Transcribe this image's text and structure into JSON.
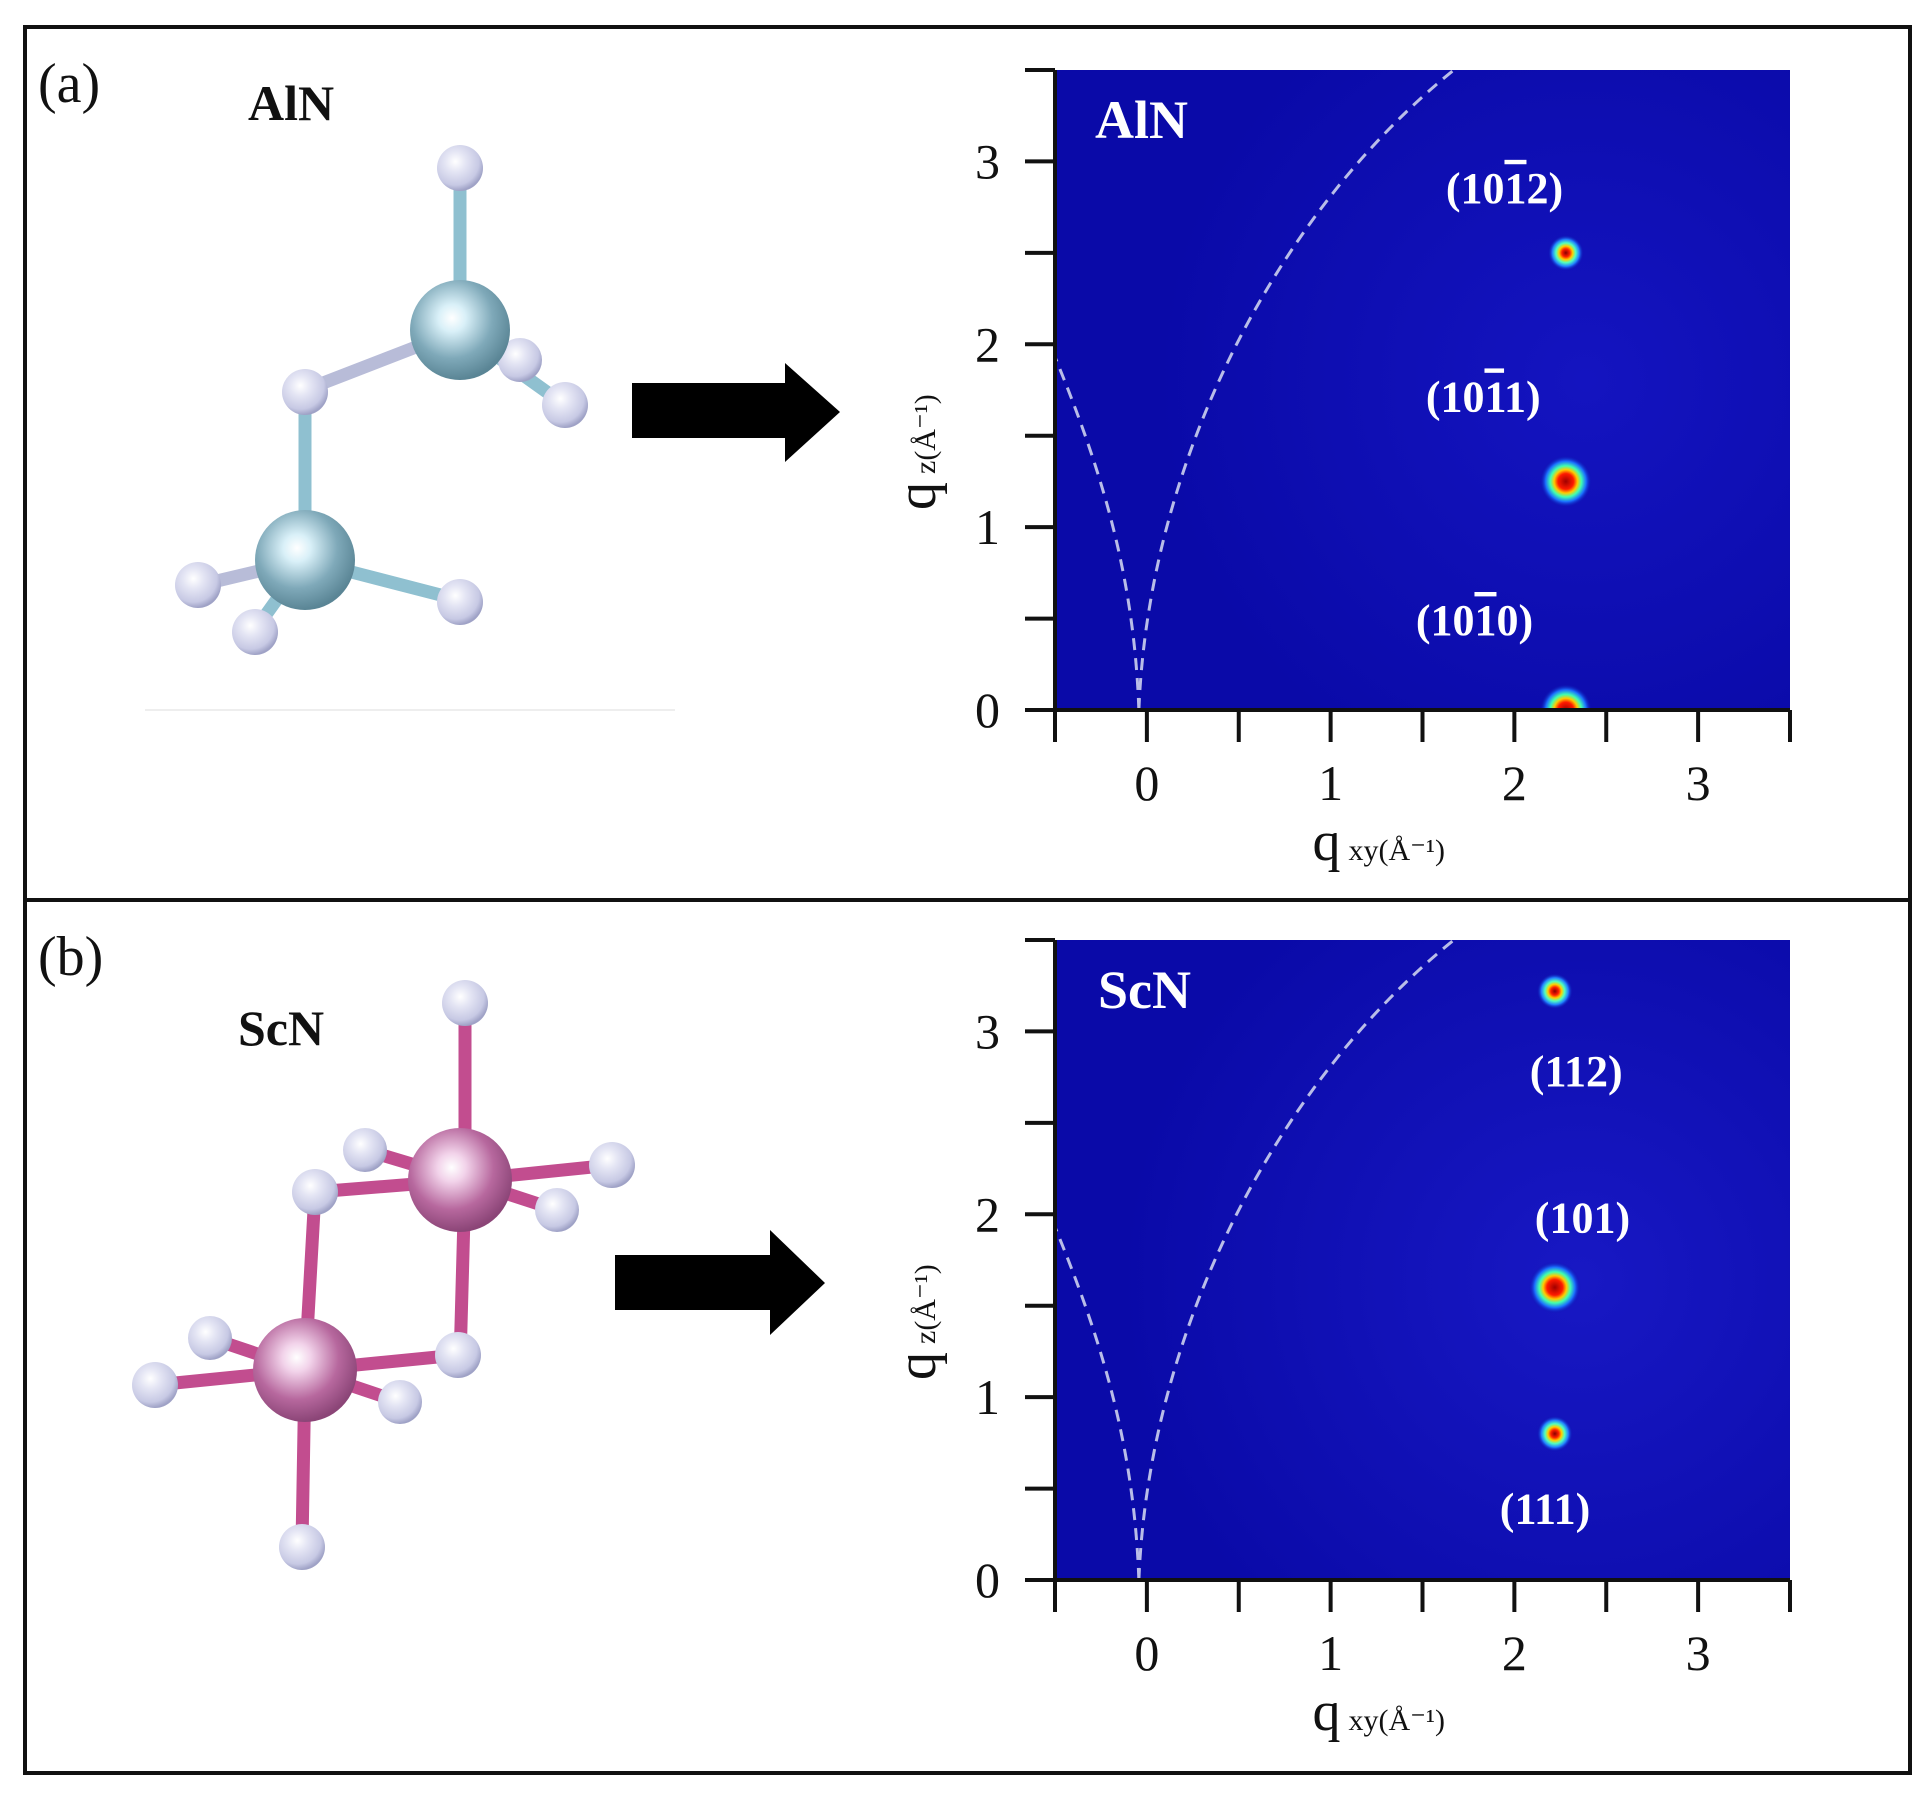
{
  "panels": [
    {
      "id": "a",
      "panel_label": "(a)",
      "material": "AlN",
      "atom_color": "#7fa9b9",
      "bond_color": "#8fc0d0",
      "plot_title": "AlN",
      "peaks": [
        {
          "label_pre": "(10",
          "label_bar": "1",
          "label_post": "2)",
          "label_suffix": ""
        },
        {
          "label_pre": "(10",
          "label_bar": "1",
          "label_post": "1)",
          "label_suffix": ""
        },
        {
          "label_pre": "(10",
          "label_bar": "1",
          "label_post": "0)",
          "label_suffix": ""
        }
      ]
    },
    {
      "id": "b",
      "panel_label": "(b)",
      "material": "ScN",
      "atom_color": "#b7689e",
      "bond_color": "#c24d8f",
      "plot_title": "ScN",
      "peaks": [
        {
          "label_pre": "(112)",
          "label_bar": "",
          "label_post": "",
          "label_suffix": ""
        },
        {
          "label_pre": "(101)",
          "label_bar": "",
          "label_post": "",
          "label_suffix": ""
        },
        {
          "label_pre": "(111)",
          "label_bar": "",
          "label_post": "",
          "label_suffix": ""
        }
      ]
    }
  ],
  "nitrogen_color": "#c7c9e4",
  "colormap_background": "#0a0aa8",
  "axes": {
    "x_label_main": "q",
    "x_label_sub": "xy(Å⁻¹)",
    "y_label_main": "q",
    "y_label_sub": "z(Å⁻¹)"
  },
  "chart_data": [
    {
      "type": "heatmap",
      "title": "AlN",
      "xlabel": "q xy(Å⁻¹)",
      "ylabel": "q z(Å⁻¹)",
      "xlim": [
        -0.5,
        3.5
      ],
      "ylim": [
        0,
        3.5
      ],
      "xticks": [
        0,
        1,
        2,
        3
      ],
      "yticks": [
        0,
        1,
        2,
        3
      ],
      "xtick_labels": [
        "0",
        "1",
        "2",
        "3"
      ],
      "ytick_labels": [
        "0",
        "1",
        "2",
        "3"
      ],
      "peaks": [
        {
          "label": "(10-12)",
          "qxy": 2.28,
          "qz": 2.5,
          "intensity": "medium"
        },
        {
          "label": "(10-11)",
          "qxy": 2.28,
          "qz": 1.25,
          "intensity": "strong"
        },
        {
          "label": "(10-10)",
          "qxy": 2.28,
          "qz": 0.0,
          "intensity": "strong"
        }
      ],
      "wedge_boundaries": "dashed"
    },
    {
      "type": "heatmap",
      "title": "ScN",
      "xlabel": "q xy(Å⁻¹)",
      "ylabel": "q z(Å⁻¹)",
      "xlim": [
        -0.5,
        3.5
      ],
      "ylim": [
        0,
        3.5
      ],
      "xticks": [
        0,
        1,
        2,
        3
      ],
      "yticks": [
        0,
        1,
        2,
        3
      ],
      "xtick_labels": [
        "0",
        "1",
        "2",
        "3"
      ],
      "ytick_labels": [
        "0",
        "1",
        "2",
        "3"
      ],
      "peaks": [
        {
          "label": "(112)",
          "qxy": 2.22,
          "qz": 3.22,
          "intensity": "medium"
        },
        {
          "label": "(101)",
          "qxy": 2.22,
          "qz": 1.6,
          "intensity": "strong"
        },
        {
          "label": "(111)",
          "qxy": 2.22,
          "qz": 0.8,
          "intensity": "medium"
        }
      ],
      "wedge_boundaries": "dashed"
    }
  ]
}
